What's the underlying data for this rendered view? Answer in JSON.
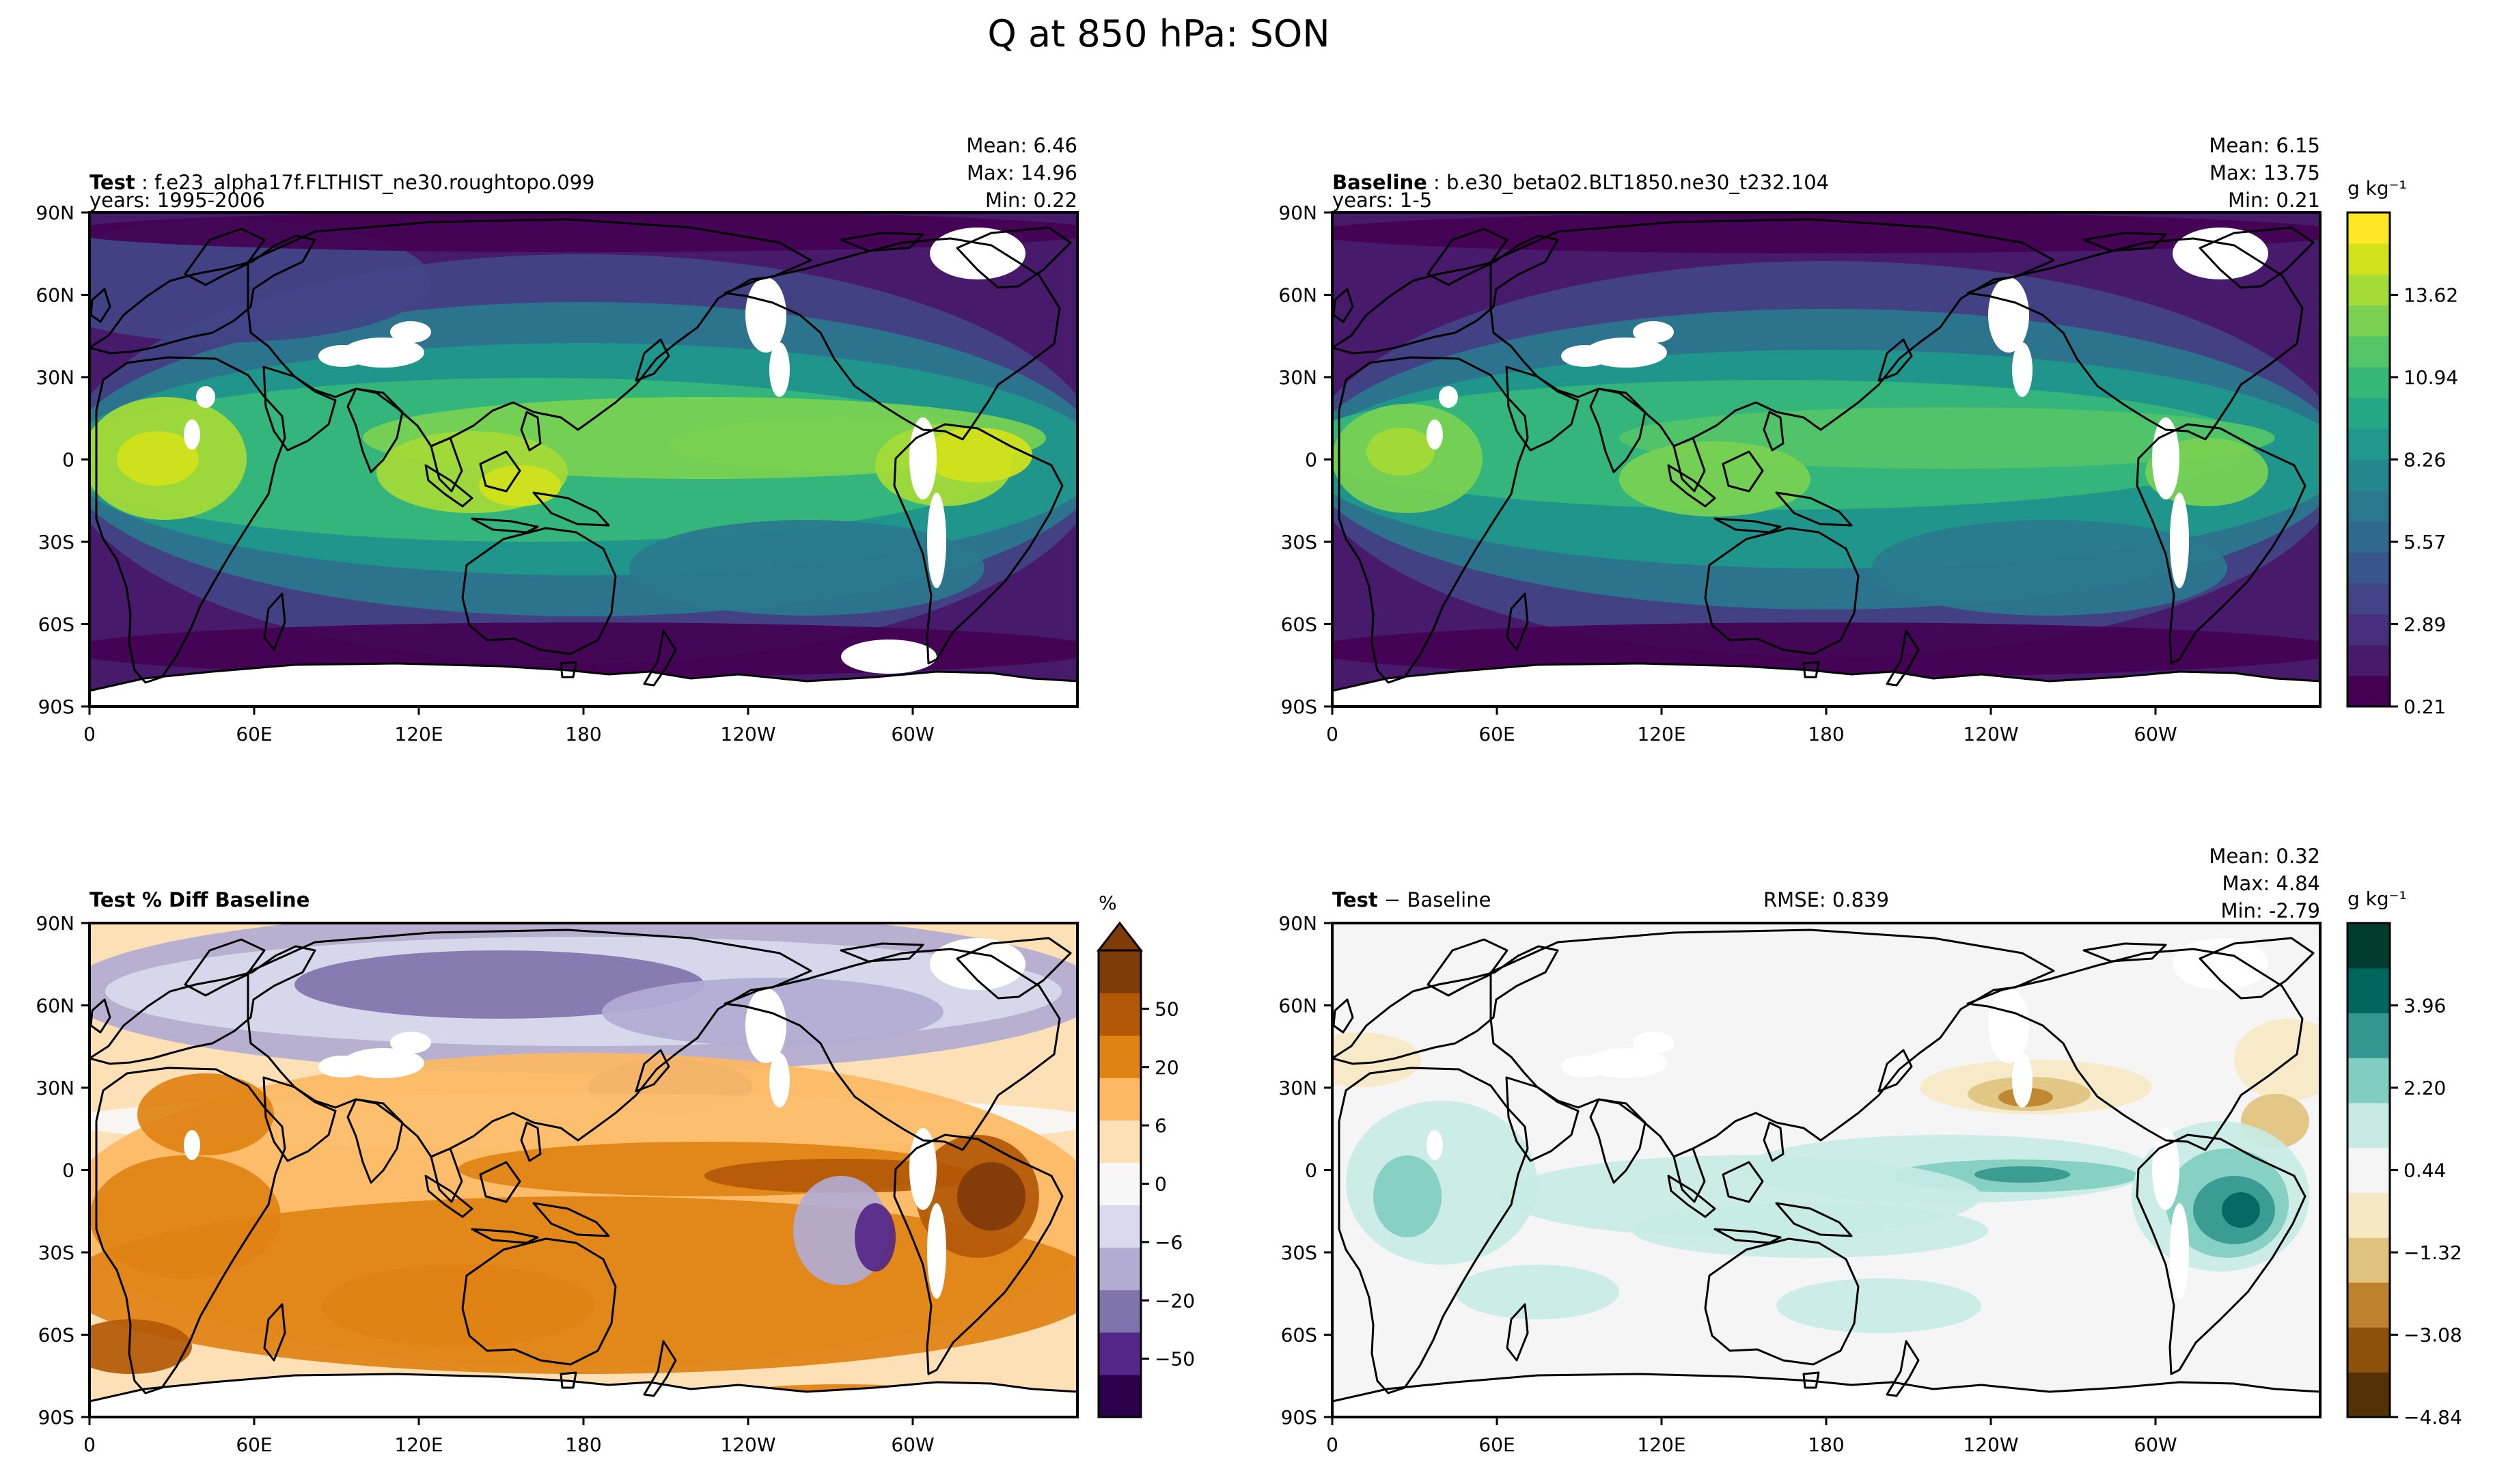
{
  "figure": {
    "suptitle": "Q at 850 hPa: SON",
    "colors": {
      "viridis": [
        "#440154",
        "#481a6c",
        "#472f7d",
        "#414487",
        "#39568c",
        "#31688e",
        "#2a788e",
        "#23888e",
        "#1f988b",
        "#22a884",
        "#35b779",
        "#54c568",
        "#7ad151",
        "#a5db36",
        "#d2e21b",
        "#fde725"
      ],
      "puor": [
        "#2d004b",
        "#542788",
        "#8073ac",
        "#b2abd2",
        "#d8daeb",
        "#f7f7f7",
        "#fee0b6",
        "#fdb863",
        "#e08214",
        "#b35806",
        "#7f3b08"
      ],
      "brbg": [
        "#543005",
        "#8c510a",
        "#bf812d",
        "#dfc27d",
        "#f6e8c3",
        "#f5f5f5",
        "#c7eae5",
        "#80cdc1",
        "#35978f",
        "#01665e",
        "#003c30"
      ],
      "land": "#ffffff",
      "coast": "#000000"
    }
  },
  "panels": [
    {
      "id": "test",
      "label_bold": "Test",
      "label_rest": " : f.e23_alpha17f.FLTHIST_ne30.roughtopo.099",
      "subtitle": "years: 1995-2006",
      "stats": [
        "Mean:  6.46",
        "Max: 14.96",
        "Min:  0.22"
      ],
      "rmse": ""
    },
    {
      "id": "baseline",
      "label_bold": "Baseline",
      "label_rest": " : b.e30_beta02.BLT1850.ne30_t232.104",
      "subtitle": "years: 1-5",
      "stats": [
        "Mean:  6.15",
        "Max: 13.75",
        "Min:  0.21"
      ],
      "rmse": ""
    },
    {
      "id": "pctdiff",
      "label_bold": "Test % Diff Baseline",
      "label_rest": "",
      "subtitle": "",
      "stats": [],
      "rmse": ""
    },
    {
      "id": "diff",
      "label_bold": "Test",
      "label_rest": " − Baseline",
      "subtitle": "",
      "stats": [
        "Mean:  0.32",
        "Max:  4.84",
        "Min: -2.79"
      ],
      "rmse": "RMSE: 0.839"
    }
  ],
  "colorbars": [
    {
      "id": "cb-main",
      "unit": "g kg⁻¹",
      "ticks": [
        "0.21",
        "2.89",
        "5.57",
        "8.26",
        "10.94",
        "13.62"
      ]
    },
    {
      "id": "cb-pct",
      "unit": "%",
      "ticks": [
        "−50",
        "−20",
        "−6",
        "0",
        "6",
        "20",
        "50"
      ]
    },
    {
      "id": "cb-diff",
      "unit": "g kg⁻¹",
      "ticks": [
        "−4.84",
        "−3.08",
        "−1.32",
        "0.44",
        "2.20",
        "3.96"
      ]
    }
  ],
  "chart_data": {
    "type": "heatmap",
    "title": "Q at 850 hPa: SON",
    "xlabel": "",
    "ylabel": "",
    "xlim": [
      0,
      360
    ],
    "ylim": [
      -90,
      90
    ],
    "x_ticks": [
      "0",
      "60E",
      "120E",
      "180",
      "120W",
      "60W"
    ],
    "y_ticks": [
      "90N",
      "60N",
      "30N",
      "0",
      "30S",
      "60S",
      "90S"
    ],
    "grid": false,
    "maps": [
      {
        "panel": "test",
        "variable": "Q",
        "units": "g kg⁻¹",
        "mean": 6.46,
        "max": 14.96,
        "min": 0.22,
        "levels": [
          0.21,
          2.89,
          5.57,
          8.26,
          10.94,
          13.62
        ]
      },
      {
        "panel": "baseline",
        "variable": "Q",
        "units": "g kg⁻¹",
        "mean": 6.15,
        "max": 13.75,
        "min": 0.21,
        "levels": [
          0.21,
          2.89,
          5.57,
          8.26,
          10.94,
          13.62
        ]
      },
      {
        "panel": "pctdiff",
        "variable": "Q % diff",
        "units": "%",
        "levels": [
          -50,
          -20,
          -6,
          0,
          6,
          20,
          50
        ]
      },
      {
        "panel": "diff",
        "variable": "Q diff",
        "units": "g kg⁻¹",
        "mean": 0.32,
        "max": 4.84,
        "min": -2.79,
        "rmse": 0.839,
        "levels": [
          -4.84,
          -3.08,
          -1.32,
          0.44,
          2.2,
          3.96
        ]
      }
    ]
  }
}
